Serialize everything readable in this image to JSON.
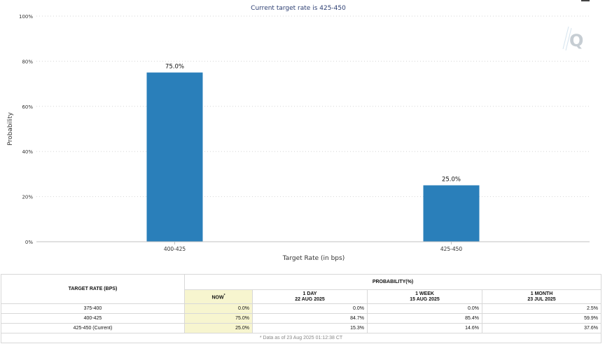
{
  "chart_data": {
    "type": "bar",
    "title": "Current target rate is 425-450",
    "xlabel": "Target Rate (in bps)",
    "ylabel": "Probability",
    "categories": [
      "400-425",
      "425-450"
    ],
    "values": [
      75.0,
      25.0
    ],
    "data_labels": [
      "75.0%",
      "25.0%"
    ],
    "ylim": [
      0,
      100
    ],
    "yticks": [
      "0%",
      "20%",
      "40%",
      "60%",
      "80%",
      "100%"
    ],
    "ytick_values": [
      0,
      20,
      40,
      60,
      80,
      100
    ],
    "bar_color": "#2a7fba",
    "grid": true
  },
  "table": {
    "header_rate": "TARGET RATE (BPS)",
    "header_prob": "PROBABILITY(%)",
    "cols": [
      {
        "line1": "NOW",
        "line2": "",
        "mark": "*"
      },
      {
        "line1": "1 DAY",
        "line2": "22 AUG 2025",
        "mark": ""
      },
      {
        "line1": "1 WEEK",
        "line2": "15 AUG 2025",
        "mark": ""
      },
      {
        "line1": "1 MONTH",
        "line2": "23 JUL 2025",
        "mark": ""
      }
    ],
    "rows": [
      {
        "rate": "375-400",
        "now": "0.0%",
        "day": "0.0%",
        "week": "0.0%",
        "month": "2.5%"
      },
      {
        "rate": "400-425",
        "now": "75.0%",
        "day": "84.7%",
        "week": "85.4%",
        "month": "59.9%"
      },
      {
        "rate": "425-450 (Current)",
        "now": "25.0%",
        "day": "15.3%",
        "week": "14.6%",
        "month": "37.6%"
      }
    ],
    "note": "* Data as of 23 Aug 2025 01:12:38 CT"
  },
  "logo_letter": "Q"
}
